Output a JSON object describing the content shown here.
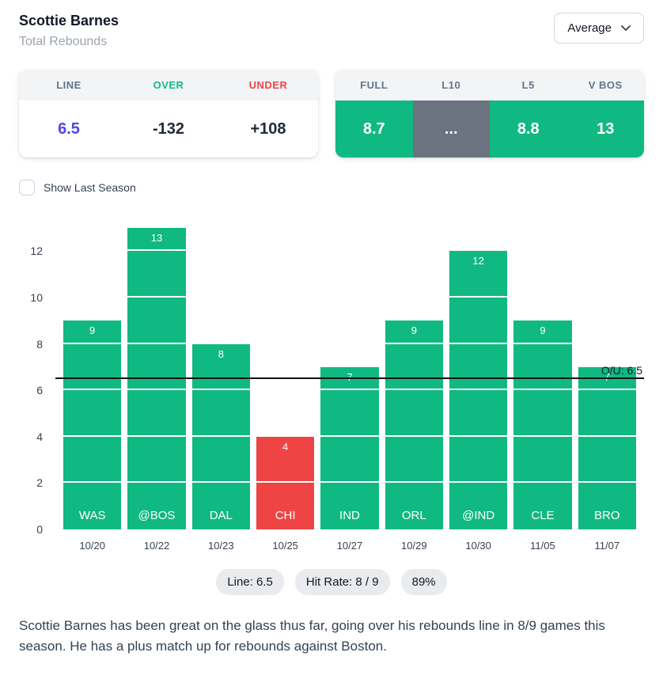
{
  "colors": {
    "green": "#10b981",
    "red": "#ef4444",
    "indigo": "#4f46e5",
    "gray_cell": "#6b7280"
  },
  "header": {
    "player_name": "Scottie Barnes",
    "stat_type": "Total Rebounds",
    "average_selector": "Average"
  },
  "line_card": {
    "headers": [
      "LINE",
      "OVER",
      "UNDER"
    ],
    "line": "6.5",
    "over": "-132",
    "under": "+108"
  },
  "splits_card": {
    "headers": [
      "FULL",
      "L10",
      "L5",
      "V BOS"
    ],
    "values": [
      "8.7",
      "...",
      "8.8",
      "13"
    ]
  },
  "controls": {
    "show_last_season": "Show Last Season"
  },
  "icons": {
    "average_dropdown": "chevron-down"
  },
  "chart_data": {
    "type": "bar",
    "categories": [
      "10/20",
      "10/22",
      "10/23",
      "10/25",
      "10/27",
      "10/29",
      "10/30",
      "11/05",
      "11/07"
    ],
    "opponents": [
      "WAS",
      "@BOS",
      "DAL",
      "CHI",
      "IND",
      "ORL",
      "@IND",
      "CLE",
      "BRO"
    ],
    "values": [
      9,
      13,
      8,
      4,
      7,
      9,
      12,
      9,
      7
    ],
    "over_under_line": 6.5,
    "line_label": "O/U: 6.5",
    "yticks": [
      0,
      2,
      4,
      6,
      8,
      10,
      12
    ],
    "ylim": [
      0,
      13.2
    ],
    "xlabel": "",
    "ylabel": "",
    "grid": "white-overlay-on-bars",
    "bar_color_rule": "green if value over line, red if under"
  },
  "summary": {
    "line_pill": "Line: 6.5",
    "hit_rate_pill": "Hit Rate: 8 / 9",
    "pct_pill": "89%"
  },
  "footer_text": "Scottie Barnes has been great on the glass thus far, going over his rebounds line in 8/9 games this season. He has a plus match up for rebounds against Boston."
}
